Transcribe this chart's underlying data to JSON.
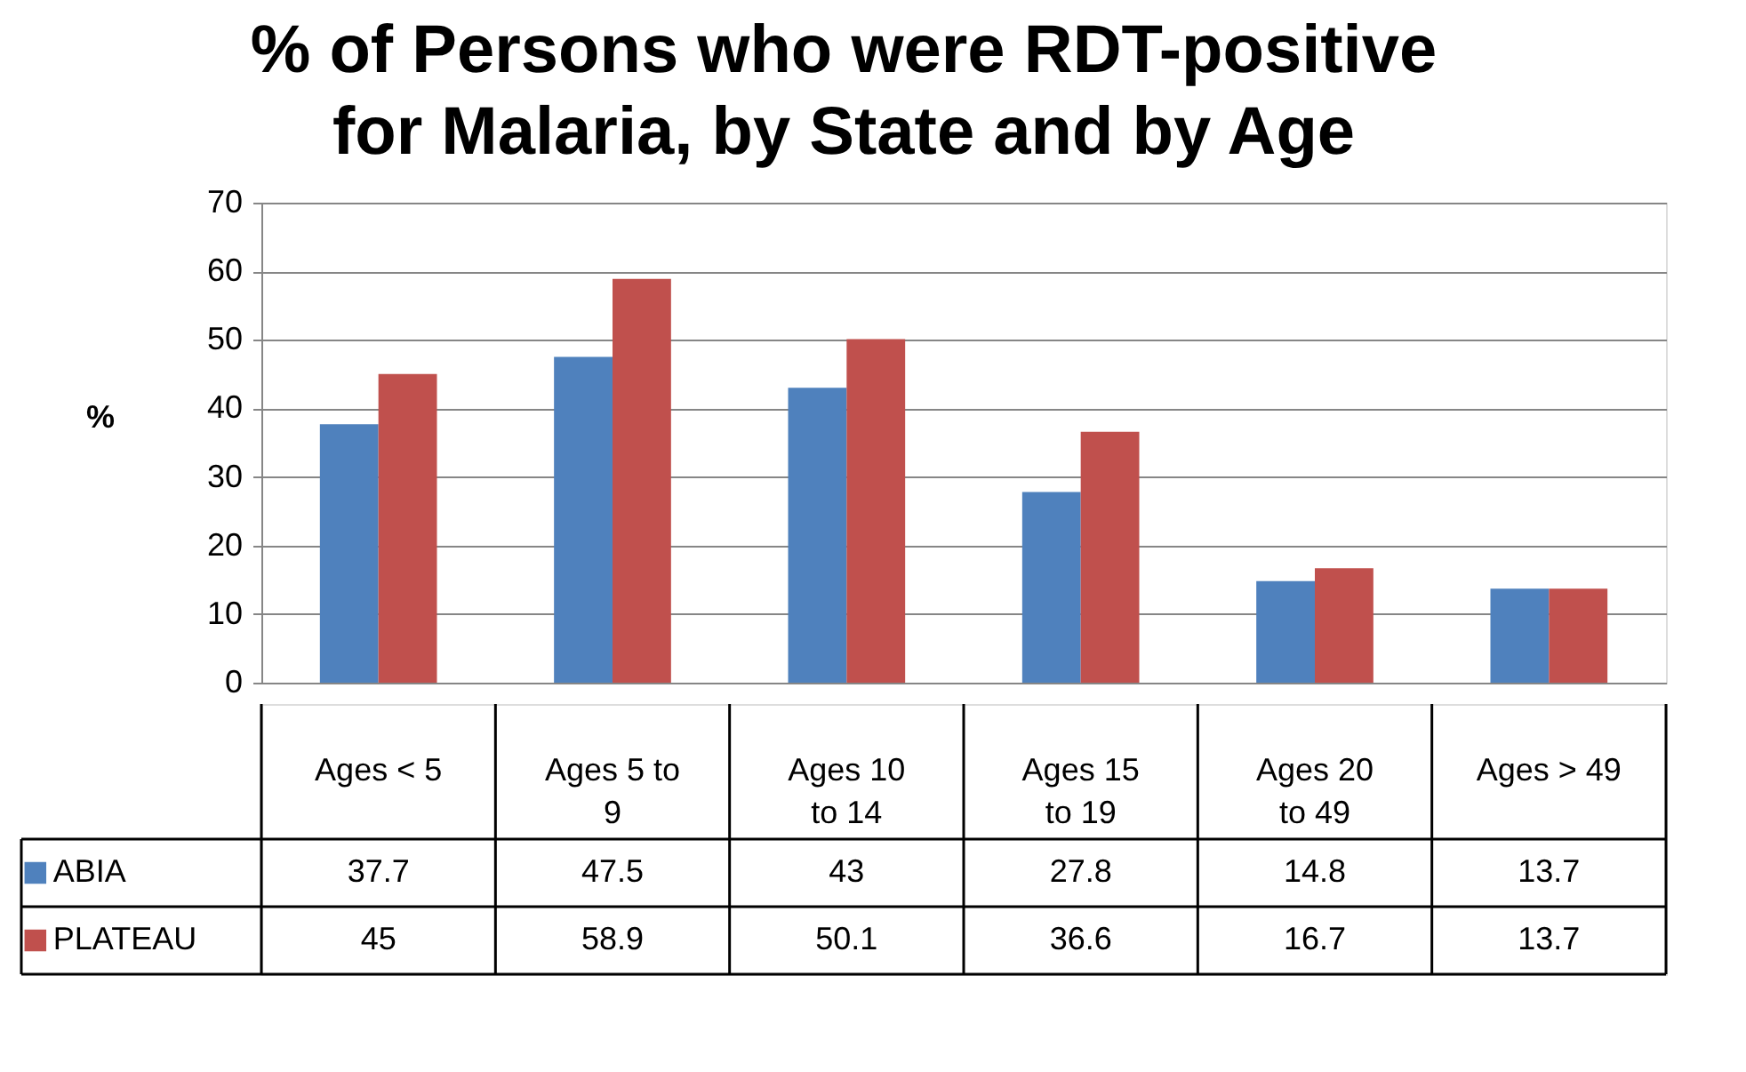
{
  "chart_data": {
    "type": "bar",
    "title": "% of Persons who were RDT-positive for Malaria, by State and by Age",
    "ylabel": "%",
    "categories": [
      "Ages < 5",
      "Ages 5 to 9",
      "Ages 10 to 14",
      "Ages 15 to 19",
      "Ages 20 to 49",
      "Ages > 49"
    ],
    "series": [
      {
        "name": "ABIA",
        "color": "#4f81bd",
        "values": [
          37.7,
          47.5,
          43,
          27.8,
          14.8,
          13.7
        ]
      },
      {
        "name": "PLATEAU",
        "color": "#c0504d",
        "values": [
          45,
          58.9,
          50.1,
          36.6,
          16.7,
          13.7
        ]
      }
    ],
    "ylim": [
      0,
      70
    ],
    "yticks": [
      0,
      10,
      20,
      30,
      40,
      50,
      60,
      70
    ],
    "grid": "y",
    "legend": "bottom left",
    "data_labels": true
  }
}
